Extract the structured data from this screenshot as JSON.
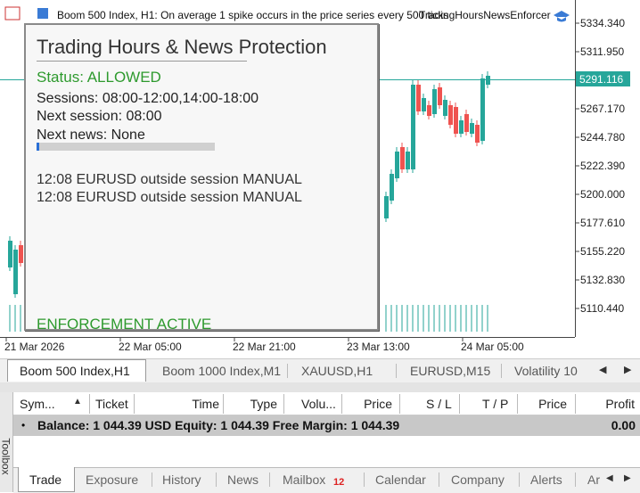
{
  "header": {
    "symbol_info": "Boom 500 Index, H1:  On average 1 spike occurs in the price series every 500 ticks",
    "expert": "TradingHoursNewsEnforcer"
  },
  "price_axis": {
    "labels": [
      "5334.340",
      "5311.950",
      "5267.170",
      "5244.780",
      "5222.390",
      "5200.000",
      "5177.610",
      "5155.220",
      "5132.830",
      "5110.440"
    ],
    "current_price": "5291.116"
  },
  "time_axis": [
    "21 Mar 2026",
    "22 Mar 05:00",
    "22 Mar 21:00",
    "23 Mar 13:00",
    "24 Mar 05:00"
  ],
  "panel": {
    "title": "Trading Hours & News Protection",
    "status": "Status: ALLOWED",
    "sessions": "Sessions: 08:00-12:00,14:00-18:00",
    "next_session": "Next session: 08:00",
    "next_news": "Next news: None",
    "log": [
      "12:08 EURUSD outside session MANUAL",
      "12:08 EURUSD outside session MANUAL"
    ],
    "footer": "ENFORCEMENT ACTIVE"
  },
  "chart_tabs": [
    "Boom 500 Index,H1",
    "Boom 1000 Index,M1",
    "XAUUSD,H1",
    "EURUSD,M15",
    "Volatility 10"
  ],
  "table": {
    "columns": [
      "Sym...",
      "Ticket",
      "Time",
      "Type",
      "Volu...",
      "Price",
      "S / L",
      "T / P",
      "Price",
      "Profit"
    ],
    "balance_row": {
      "summary": "Balance: 1 044.39 USD  Equity: 1 044.39  Free Margin: 1 044.39",
      "profit": "0.00"
    }
  },
  "bottom_tabs": [
    "Trade",
    "Exposure",
    "History",
    "News",
    "Mailbox",
    "Calendar",
    "Company",
    "Alerts",
    "Ar"
  ],
  "mailbox_badge": "12",
  "sidebar": "Toolbox"
}
